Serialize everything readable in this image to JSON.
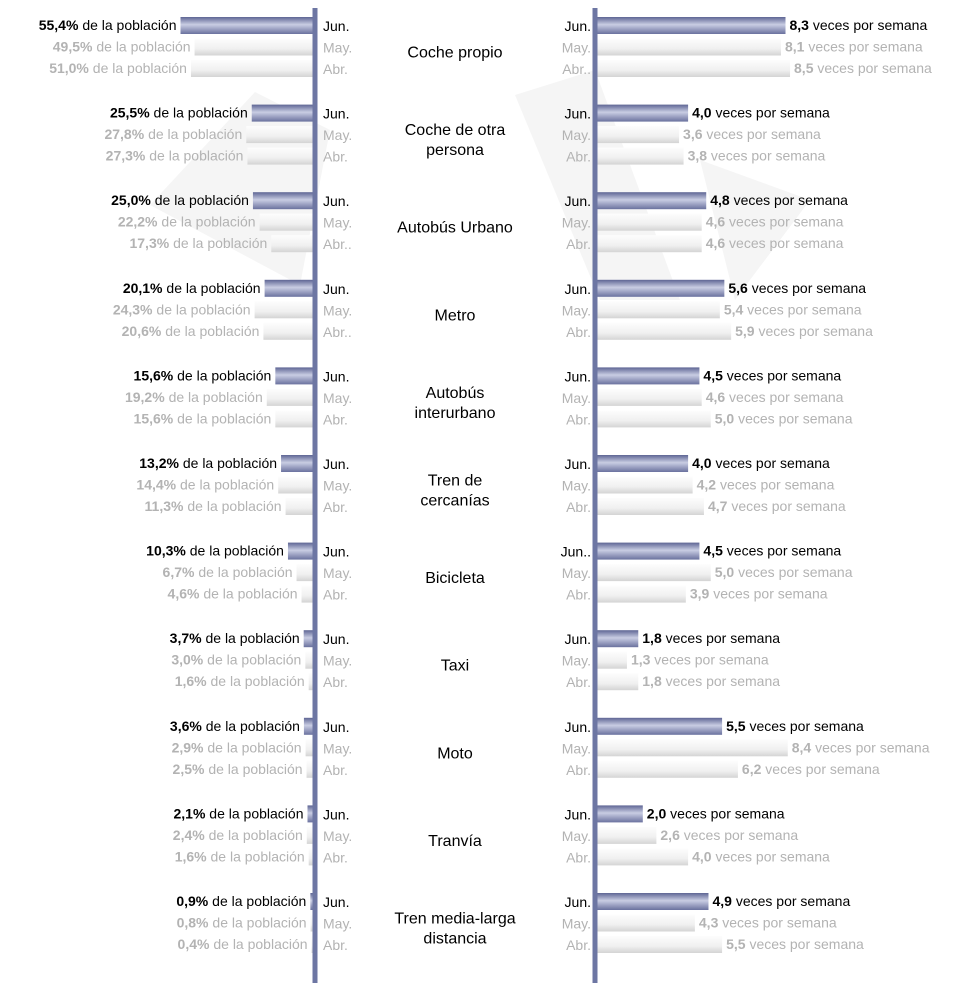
{
  "chart_data": {
    "type": "bar",
    "description": "Mirrored horizontal bar chart: left side share of population, right side weekly frequency; three months per transport mode",
    "months": [
      "Jun.",
      "May.",
      "Abr."
    ],
    "month_labels": [
      [
        "Jun.",
        "May.",
        "Abr."
      ],
      [
        "Jun.",
        "May.",
        "Abr."
      ],
      [
        "Jun.",
        "May.",
        "Abr.."
      ],
      [
        "Jun.",
        "May.",
        "Abr.."
      ],
      [
        "Jun.",
        "May.",
        "Abr."
      ],
      [
        "Jun.",
        "May.",
        "Abr."
      ],
      [
        "Jun.",
        "May.",
        "Abr."
      ],
      [
        "Jun.",
        "May.",
        "Abr."
      ],
      [
        "Jun.",
        "May.",
        "Abr."
      ],
      [
        "Jun.",
        "May.",
        "Abr."
      ],
      [
        "Jun.",
        "May.",
        "Abr."
      ]
    ],
    "right_month_labels": [
      [
        "Jun.",
        "May.",
        "Abr.."
      ],
      [
        "Jun.",
        "May.",
        "Abr."
      ],
      [
        "Jun.",
        "May.",
        "Abr."
      ],
      [
        "Jun.",
        "May.",
        "Abr."
      ],
      [
        "Jun.",
        "May.",
        "Abr."
      ],
      [
        "Jun.",
        "May.",
        "Abr."
      ],
      [
        "Jun..",
        "May.",
        "Abr."
      ],
      [
        "Jun.",
        "May.",
        "Abr."
      ],
      [
        "Jun.",
        "May.",
        "Abr."
      ],
      [
        "Jun.",
        "May.",
        "Abr."
      ],
      [
        "Jun.",
        "May.",
        "Abr."
      ]
    ],
    "population_suffix": "de la población",
    "frequency_suffix": "veces por semana",
    "categories": [
      [
        "Coche propio"
      ],
      [
        "Coche de otra",
        "persona"
      ],
      [
        "Autobús Urbano"
      ],
      [
        "Metro"
      ],
      [
        "Autobús",
        "interurbano"
      ],
      [
        "Tren de",
        "cercanías"
      ],
      [
        "Bicicleta"
      ],
      [
        "Taxi"
      ],
      [
        "Moto"
      ],
      [
        "Tranvía"
      ],
      [
        "Tren media-larga",
        "distancia"
      ]
    ],
    "population_pct": [
      [
        55.4,
        49.5,
        51.0
      ],
      [
        25.5,
        27.8,
        27.3
      ],
      [
        25.0,
        22.2,
        17.3
      ],
      [
        20.1,
        24.3,
        20.6
      ],
      [
        15.6,
        19.2,
        15.6
      ],
      [
        13.2,
        14.4,
        11.3
      ],
      [
        10.3,
        6.7,
        4.6
      ],
      [
        3.7,
        3.0,
        1.6
      ],
      [
        3.6,
        2.9,
        2.5
      ],
      [
        2.1,
        2.4,
        1.6
      ],
      [
        0.9,
        0.8,
        0.4
      ]
    ],
    "population_labels": [
      [
        "55,4%",
        "49,5%",
        "51,0%"
      ],
      [
        "25,5%",
        "27,8%",
        "27,3%"
      ],
      [
        "25,0%",
        "22,2%",
        "17,3%"
      ],
      [
        "20,1%",
        "24,3%",
        "20,6%"
      ],
      [
        "15,6%",
        "19,2%",
        "15,6%"
      ],
      [
        "13,2%",
        "14,4%",
        "11,3%"
      ],
      [
        "10,3%",
        "6,7%",
        "4,6%"
      ],
      [
        "3,7%",
        "3,0%",
        "1,6%"
      ],
      [
        "3,6%",
        "2,9%",
        "2,5%"
      ],
      [
        "2,1%",
        "2,4%",
        "1,6%"
      ],
      [
        "0,9%",
        "0,8%",
        "0,4%"
      ]
    ],
    "times_per_week": [
      [
        8.3,
        8.1,
        8.5
      ],
      [
        4.0,
        3.6,
        3.8
      ],
      [
        4.8,
        4.6,
        4.6
      ],
      [
        5.6,
        5.4,
        5.9
      ],
      [
        4.5,
        4.6,
        5.0
      ],
      [
        4.0,
        4.2,
        4.7
      ],
      [
        4.5,
        5.0,
        3.9
      ],
      [
        1.8,
        1.3,
        1.8
      ],
      [
        5.5,
        8.4,
        6.2
      ],
      [
        2.0,
        2.6,
        4.0
      ],
      [
        4.9,
        4.3,
        5.5
      ]
    ],
    "times_labels": [
      [
        "8,3",
        "8,1",
        "8,5"
      ],
      [
        "4,0",
        "3,6",
        "3,8"
      ],
      [
        "4,8",
        "4,6",
        "4,6"
      ],
      [
        "5,6",
        "5,4",
        "5,9"
      ],
      [
        "4,5",
        "4,6",
        "5,0"
      ],
      [
        "4,0",
        "4,2",
        "4,7"
      ],
      [
        "4,5",
        "5,0",
        "3,9"
      ],
      [
        "1,8",
        "1,3",
        "1,8"
      ],
      [
        "5,5",
        "8,4",
        "6,2"
      ],
      [
        "2,0",
        "2,6",
        "4,0"
      ],
      [
        "4,9",
        "4,3",
        "5,5"
      ]
    ],
    "colors": {
      "axis": "#6d76a3",
      "current_bar_dark": "#5e6594",
      "current_bar_light": "#c9cde3",
      "past_bar_dark": "#d6d6d6",
      "past_bar_light": "#fafafa",
      "current_text": "#000000",
      "past_text": "#b3b3b3",
      "watermark": "#f4f4f4"
    }
  }
}
